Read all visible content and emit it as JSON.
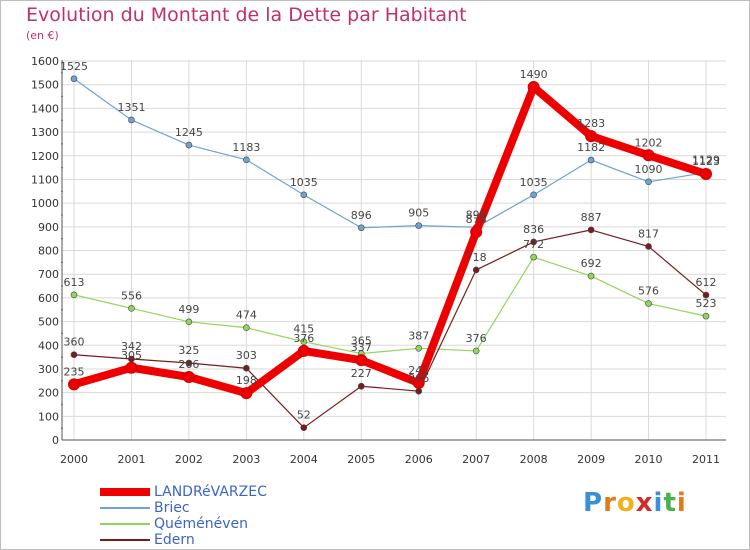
{
  "title": "Evolution du Montant de la Dette par Habitant",
  "subtitle": "(en €)",
  "logo": {
    "letters": [
      "P",
      "r",
      "o",
      "x",
      "i",
      "t",
      "i"
    ],
    "colors": [
      "#3a8fd6",
      "#e07a1a",
      "#f0b21a",
      "#d62a2a",
      "#3a8fd6",
      "#4caf50",
      "#e07a1a"
    ]
  },
  "chart_data": {
    "type": "line",
    "categories": [
      "2000",
      "2001",
      "2002",
      "2003",
      "2004",
      "2005",
      "2006",
      "2007",
      "2008",
      "2009",
      "2010",
      "2011"
    ],
    "ylim": [
      0,
      1600
    ],
    "yticks": [
      "0",
      "100",
      "200",
      "300",
      "400",
      "500",
      "600",
      "700",
      "800",
      "900",
      "1000",
      "1100",
      "1200",
      "1300",
      "1400",
      "1500",
      "1600"
    ],
    "grid": true,
    "legend_position": "bottom-left",
    "series": [
      {
        "name": "Briec",
        "color": "#6fa3d0",
        "values": [
          1525,
          1351,
          1245,
          1183,
          1035,
          896,
          905,
          898,
          1035,
          1182,
          1090,
          1129
        ],
        "labels": [
          "1525",
          "1351",
          "1245",
          "1183",
          "1035",
          "896",
          "905",
          "898",
          "1035",
          "1182",
          "1090",
          "1129"
        ]
      },
      {
        "name": "Quéménéven",
        "color": "#90d65a",
        "values": [
          613,
          556,
          499,
          474,
          415,
          365,
          387,
          376,
          772,
          692,
          576,
          523
        ],
        "labels": [
          "613",
          "556",
          "499",
          "474",
          "415",
          "365",
          "387",
          "376",
          "772",
          "692",
          "576",
          "523"
        ]
      },
      {
        "name": "Edern",
        "color": "#7a1c1c",
        "values": [
          360,
          342,
          325,
          303,
          52,
          227,
          206,
          718,
          836,
          887,
          817,
          612
        ],
        "labels": [
          "360",
          "342",
          "325",
          "303",
          "52",
          "227",
          "206",
          "718",
          "836",
          "887",
          "817",
          "612"
        ]
      },
      {
        "name": "LANDRéVARZEC",
        "color": "#ee0000",
        "values": [
          235,
          305,
          266,
          198,
          376,
          337,
          241,
          878,
          1490,
          1283,
          1202,
          1123
        ],
        "labels": [
          "235",
          "305",
          "266",
          "198",
          "376",
          "337",
          "241",
          "878",
          "1490",
          "1283",
          "1202",
          "1123"
        ]
      }
    ]
  }
}
